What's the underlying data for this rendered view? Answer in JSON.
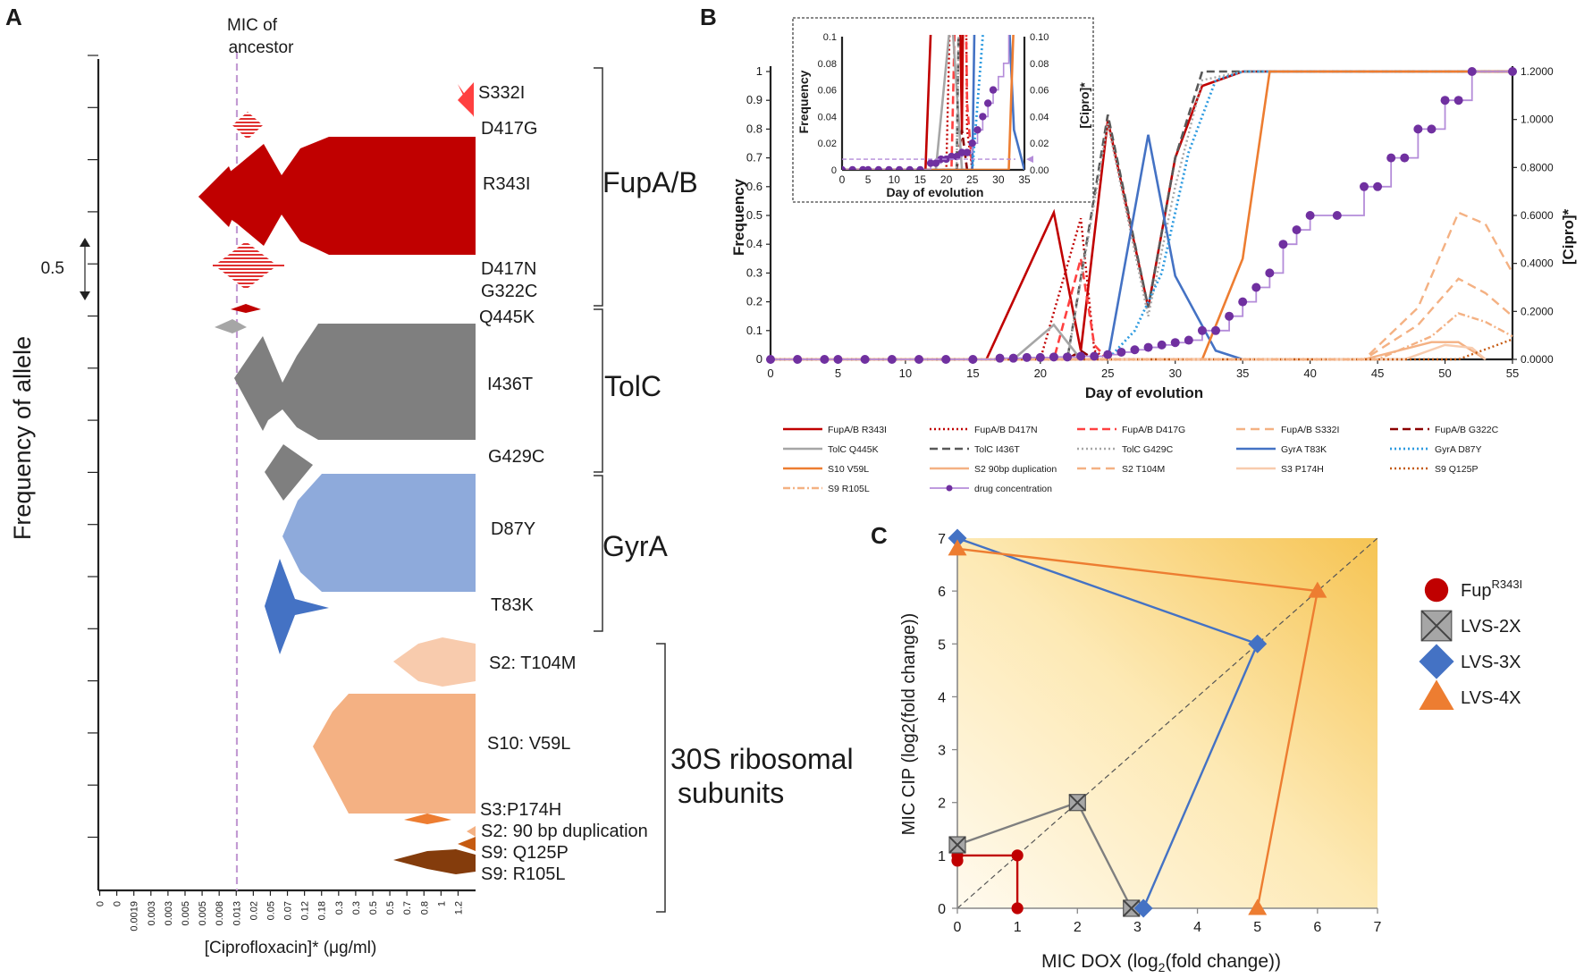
{
  "chart_data": [
    {
      "panel": "A",
      "type": "area",
      "panel_label": "A",
      "ylabel": "Frequency of allele",
      "xlabel": "[Ciprofloxacin]* (μg/ml)",
      "x_ticks": [
        "0",
        "0",
        "0.0019",
        "0.003",
        "0.003",
        "0.005",
        "0.005",
        "0.008",
        "0.013",
        "0.02",
        "0.05",
        "0.07",
        "0.12",
        "0.18",
        "0.3",
        "0.3",
        "0.5",
        "0.5",
        "0.7",
        "0.8",
        "1",
        "1.2"
      ],
      "mic_label": "MIC of ancestor",
      "mic_x": "0.008",
      "scale_label": "0.5",
      "groups": [
        {
          "name": "FupA/B",
          "alleles": [
            "S332I",
            "D417G",
            "R343I",
            "D417N",
            "G322C"
          ]
        },
        {
          "name": "TolC",
          "alleles": [
            "Q445K",
            "I436T",
            "G429C"
          ]
        },
        {
          "name": "GyrA",
          "alleles": [
            "D87Y",
            "T83K"
          ]
        },
        {
          "name": "30S ribosomal subunits",
          "name_lines": [
            "30S ribosomal",
            "subunits"
          ],
          "alleles": [
            "S2: T104M",
            "S10: V59L",
            "S3:P174H",
            "S2: 90 bp duplication",
            "S9: Q125P",
            "S9: R105L"
          ]
        }
      ],
      "colors": {
        "fupa": "#c00000",
        "tolc": "#7f7f7f",
        "gyra_d87y": "#8eaadb",
        "gyra_t83k": "#4472c4",
        "s2t104m": "#f8cbad",
        "s10": "#f4b183",
        "s3": "#f4b183",
        "s2dup": "#ed7d31",
        "s9q": "#c55a11",
        "s9r": "#843c0c",
        "mic": "#c39bd3"
      }
    },
    {
      "panel": "B",
      "type": "line",
      "panel_label": "B",
      "title": "",
      "xlabel": "Day of evolution",
      "ylabel": "Frequency",
      "y2label": "[Cipro]*",
      "xlim": [
        0,
        55
      ],
      "ylim": [
        0,
        1
      ],
      "y2lim": [
        0,
        1.2
      ],
      "x_ticks": [
        0,
        5,
        10,
        15,
        20,
        25,
        30,
        35,
        40,
        45,
        50,
        55
      ],
      "y_ticks": [
        0,
        0.1,
        0.2,
        0.3,
        0.4,
        0.5,
        0.6,
        0.7,
        0.8,
        0.9,
        1
      ],
      "y2_ticks": [
        "0.0000",
        "0.2000",
        "0.4000",
        "0.6000",
        "0.8000",
        "1.0000",
        "1.2000"
      ],
      "inset": {
        "xlabel": "Day of evolution",
        "ylabel": "Frequency",
        "y2label": "[Cipro]*",
        "x_ticks": [
          0,
          5,
          10,
          15,
          20,
          25,
          30,
          35
        ],
        "y_ticks": [
          "0",
          "0.02",
          "0.04",
          "0.06",
          "0.08",
          "0.1"
        ],
        "y2_ticks": [
          "0.00",
          "0.02",
          "0.04",
          "0.06",
          "0.08",
          "0.10"
        ]
      },
      "series": [
        {
          "name": "FupA/B R343I",
          "color": "#c00000",
          "dash": "",
          "width": 2.6,
          "points": [
            [
              0,
              0
            ],
            [
              16,
              0
            ],
            [
              21,
              0.51
            ],
            [
              23,
              0.03
            ],
            [
              25,
              0.83
            ],
            [
              28,
              0.18
            ],
            [
              30,
              0.7
            ],
            [
              32,
              0.95
            ],
            [
              35,
              1
            ],
            [
              55,
              1
            ]
          ]
        },
        {
          "name": "FupA/B D417N",
          "color": "#c00000",
          "dash": "2,3",
          "width": 2.4,
          "points": [
            [
              0,
              0
            ],
            [
              20,
              0
            ],
            [
              23,
              0.49
            ],
            [
              24,
              0.03
            ],
            [
              25,
              0
            ]
          ]
        },
        {
          "name": "FupA/B D417G",
          "color": "#ff4040",
          "dash": "9,5",
          "width": 2.6,
          "points": [
            [
              0,
              0
            ],
            [
              21,
              0
            ],
            [
              23,
              0.35
            ],
            [
              24,
              0.05
            ],
            [
              25,
              0
            ]
          ]
        },
        {
          "name": "FupA/B S332I",
          "color": "#f4b183",
          "dash": "10,6",
          "width": 2.4,
          "points": [
            [
              0,
              0
            ],
            [
              44,
              0
            ],
            [
              48,
              0.18
            ],
            [
              51,
              0.51
            ],
            [
              53,
              0.47
            ],
            [
              55,
              0.3
            ]
          ]
        },
        {
          "name": "FupA/B G322C",
          "color": "#8b0000",
          "dash": "9,5",
          "width": 2.6,
          "points": [
            [
              0,
              0
            ],
            [
              22,
              0
            ],
            [
              23,
              0.03
            ],
            [
              24,
              0
            ]
          ]
        },
        {
          "name": "TolC Q445K",
          "color": "#a6a6a6",
          "dash": "",
          "width": 2.6,
          "points": [
            [
              0,
              0
            ],
            [
              18,
              0
            ],
            [
              21,
              0.12
            ],
            [
              23,
              0
            ]
          ]
        },
        {
          "name": "TolC I436T",
          "color": "#595959",
          "dash": "9,5",
          "width": 2.6,
          "points": [
            [
              0,
              0
            ],
            [
              22,
              0
            ],
            [
              25,
              0.85
            ],
            [
              28,
              0.18
            ],
            [
              30,
              0.7
            ],
            [
              32,
              1
            ],
            [
              55,
              1
            ]
          ]
        },
        {
          "name": "TolC G429C",
          "color": "#a6a6a6",
          "dash": "2,3",
          "width": 2.4,
          "points": [
            [
              0,
              0
            ],
            [
              22,
              0
            ],
            [
              25,
              0.82
            ],
            [
              28,
              0.15
            ],
            [
              30,
              0.6
            ],
            [
              32,
              0.97
            ],
            [
              35,
              1
            ],
            [
              55,
              1
            ]
          ]
        },
        {
          "name": "GyrA T83K",
          "color": "#4472c4",
          "dash": "",
          "width": 2.6,
          "points": [
            [
              0,
              0
            ],
            [
              25,
              0
            ],
            [
              28,
              0.78
            ],
            [
              30,
              0.29
            ],
            [
              33,
              0.03
            ],
            [
              35,
              0
            ]
          ]
        },
        {
          "name": "GyrA D87Y",
          "color": "#2e9be0",
          "dash": "2,3",
          "width": 2.8,
          "points": [
            [
              0,
              0
            ],
            [
              25,
              0
            ],
            [
              27,
              0.1
            ],
            [
              29,
              0.3
            ],
            [
              31,
              0.72
            ],
            [
              33,
              0.97
            ],
            [
              35,
              1
            ],
            [
              55,
              1
            ]
          ]
        },
        {
          "name": "S10 V59L",
          "color": "#ed7d31",
          "dash": "",
          "width": 2.6,
          "points": [
            [
              0,
              0
            ],
            [
              32,
              0
            ],
            [
              35,
              0.35
            ],
            [
              37,
              1
            ],
            [
              55,
              1
            ]
          ]
        },
        {
          "name": "S2 90bp duplication",
          "color": "#f4b183",
          "dash": "",
          "width": 2.4,
          "points": [
            [
              0,
              0
            ],
            [
              44,
              0
            ],
            [
              49,
              0.06
            ],
            [
              51,
              0.06
            ],
            [
              53,
              0
            ]
          ]
        },
        {
          "name": "S2 T104M",
          "color": "#f4b183",
          "dash": "10,6",
          "width": 2.4,
          "points": [
            [
              0,
              0
            ],
            [
              44,
              0
            ],
            [
              48,
              0.12
            ],
            [
              51,
              0.28
            ],
            [
              53,
              0.23
            ],
            [
              55,
              0.15
            ]
          ]
        },
        {
          "name": "S3 P174H",
          "color": "#f8cbad",
          "dash": "",
          "width": 2.4,
          "points": [
            [
              0,
              0
            ],
            [
              47,
              0
            ],
            [
              50,
              0.05
            ],
            [
              52,
              0.04
            ],
            [
              53,
              0
            ]
          ]
        },
        {
          "name": "S9 Q125P",
          "color": "#c55a11",
          "dash": "2,3",
          "width": 2.4,
          "points": [
            [
              0,
              0
            ],
            [
              51,
              0
            ],
            [
              55,
              0.07
            ]
          ]
        },
        {
          "name": "S9 R105L",
          "color": "#f4b183",
          "dash": "8,3,2,3",
          "width": 2.4,
          "points": [
            [
              0,
              0
            ],
            [
              45,
              0
            ],
            [
              49,
              0.08
            ],
            [
              51,
              0.16
            ],
            [
              53,
              0.13
            ],
            [
              55,
              0.08
            ]
          ]
        }
      ],
      "drug_concentration": {
        "name": "drug concentration",
        "color": "#7030a0",
        "line_color": "#b48cd9",
        "points": [
          [
            0,
            0
          ],
          [
            2,
            0
          ],
          [
            4,
            0
          ],
          [
            5,
            0
          ],
          [
            7,
            0
          ],
          [
            9,
            0
          ],
          [
            11,
            0
          ],
          [
            13,
            0
          ],
          [
            15,
            0
          ],
          [
            17,
            0.005
          ],
          [
            18,
            0.005
          ],
          [
            19,
            0.008
          ],
          [
            20,
            0.008
          ],
          [
            21,
            0.01
          ],
          [
            22,
            0.01
          ],
          [
            23,
            0.013
          ],
          [
            24,
            0.013
          ],
          [
            25,
            0.02
          ],
          [
            26,
            0.03
          ],
          [
            27,
            0.04
          ],
          [
            28,
            0.05
          ],
          [
            29,
            0.06
          ],
          [
            30,
            0.07
          ],
          [
            31,
            0.08
          ],
          [
            32,
            0.12
          ],
          [
            33,
            0.12
          ],
          [
            34,
            0.18
          ],
          [
            35,
            0.24
          ],
          [
            36,
            0.3
          ],
          [
            37,
            0.36
          ],
          [
            38,
            0.48
          ],
          [
            39,
            0.54
          ],
          [
            40,
            0.6
          ],
          [
            42,
            0.6
          ],
          [
            44,
            0.72
          ],
          [
            45,
            0.72
          ],
          [
            46,
            0.84
          ],
          [
            47,
            0.84
          ],
          [
            48,
            0.96
          ],
          [
            49,
            0.96
          ],
          [
            50,
            1.08
          ],
          [
            51,
            1.08
          ],
          [
            52,
            1.2
          ],
          [
            55,
            1.2
          ]
        ]
      }
    },
    {
      "panel": "C",
      "type": "scatter",
      "panel_label": "C",
      "xlabel": "MIC DOX (log",
      "xlabel_sub": "2",
      "xlabel_rest": "(fold change))",
      "ylabel": "MIC CIP (log2(fold change))",
      "xlim": [
        0,
        7
      ],
      "ylim": [
        0,
        7
      ],
      "x_ticks": [
        0,
        1,
        2,
        3,
        4,
        5,
        6,
        7
      ],
      "y_ticks": [
        0,
        1,
        2,
        3,
        4,
        5,
        6,
        7
      ],
      "series": [
        {
          "name": "Fup",
          "superscript": "R343I",
          "marker": "circle",
          "color": "#c00000",
          "points": [
            [
              0,
              0.9
            ],
            [
              0,
              1
            ],
            [
              1,
              1
            ],
            [
              1,
              0
            ]
          ]
        },
        {
          "name": "LVS-2X",
          "marker": "xsquare",
          "color": "#7f7f7f",
          "points": [
            [
              0,
              1.2
            ],
            [
              2,
              2
            ],
            [
              2.9,
              0
            ]
          ]
        },
        {
          "name": "LVS-3X",
          "marker": "diamond",
          "color": "#4472c4",
          "points": [
            [
              0,
              7
            ],
            [
              5,
              5
            ],
            [
              3.1,
              0
            ]
          ]
        },
        {
          "name": "LVS-4X",
          "marker": "triangle",
          "color": "#ed7d31",
          "points": [
            [
              0,
              6.8
            ],
            [
              6,
              6
            ],
            [
              5,
              0
            ]
          ]
        }
      ]
    }
  ]
}
